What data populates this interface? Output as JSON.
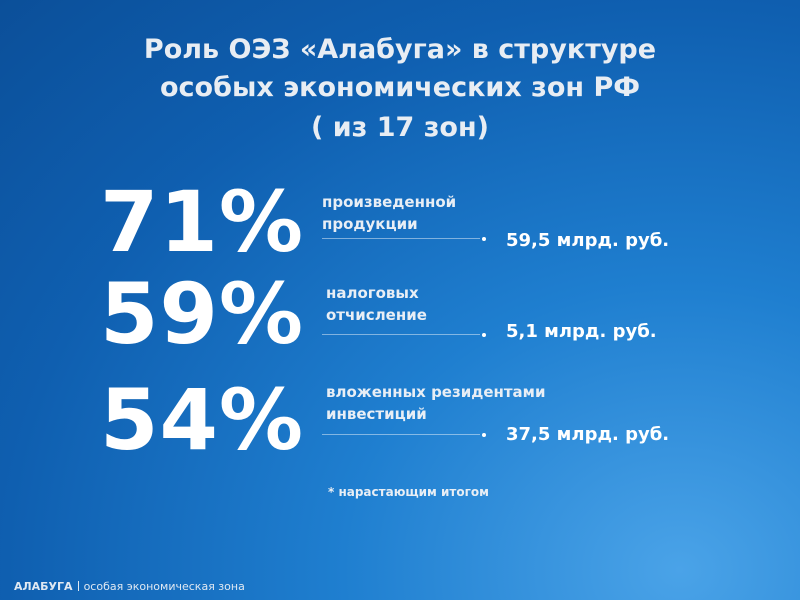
{
  "header": {
    "title": [
      "Роль ОЭЗ «Алабуга» в структуре",
      "особых экономических зон РФ",
      "( из 17 зон)"
    ]
  },
  "stats": [
    {
      "value": "71%",
      "label": [
        "произведенной",
        "продукции"
      ],
      "amount": "59,5 млрд. руб."
    },
    {
      "value": "59%",
      "label": [
        "налоговых",
        "отчисление"
      ],
      "amount": "5,1 млрд. руб."
    },
    {
      "value": "54%",
      "label": [
        "вложенных резидентами",
        "инвестиций"
      ],
      "amount": "37,5 млрд. руб."
    }
  ],
  "footnote": "* нарастающим итогом",
  "footer": {
    "brand": "АЛАБУГА",
    "tagline": "особая экономическая зона"
  }
}
